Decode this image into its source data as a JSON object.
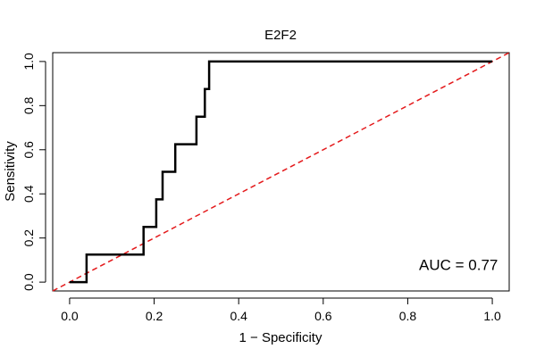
{
  "chart_data": {
    "type": "line",
    "title": "E2F2",
    "xlabel": "1 − Specificity",
    "ylabel": "Sensitivity",
    "xlim": [
      -0.04,
      1.04
    ],
    "ylim": [
      -0.04,
      1.04
    ],
    "x_ticks": [
      0.0,
      0.2,
      0.4,
      0.6,
      0.8,
      1.0
    ],
    "x_tick_labels": [
      "0.0",
      "0.2",
      "0.4",
      "0.6",
      "0.8",
      "1.0"
    ],
    "y_ticks": [
      0.0,
      0.2,
      0.4,
      0.6,
      0.8,
      1.0
    ],
    "y_tick_labels": [
      "0.0",
      "0.2",
      "0.4",
      "0.6",
      "0.8",
      "1.0"
    ],
    "grid": false,
    "series": [
      {
        "color": "#000000",
        "style": "step",
        "points": [
          [
            0.0,
            0.0
          ],
          [
            0.04,
            0.0
          ],
          [
            0.04,
            0.125
          ],
          [
            0.175,
            0.125
          ],
          [
            0.175,
            0.25
          ],
          [
            0.205,
            0.25
          ],
          [
            0.205,
            0.375
          ],
          [
            0.22,
            0.375
          ],
          [
            0.22,
            0.5
          ],
          [
            0.25,
            0.5
          ],
          [
            0.25,
            0.625
          ],
          [
            0.3,
            0.625
          ],
          [
            0.3,
            0.75
          ],
          [
            0.32,
            0.75
          ],
          [
            0.32,
            0.875
          ],
          [
            0.33,
            0.875
          ],
          [
            0.33,
            1.0
          ],
          [
            1.0,
            1.0
          ]
        ]
      },
      {
        "color": "#e41a1c",
        "style": "dashed",
        "points": [
          [
            -0.04,
            -0.04
          ],
          [
            1.04,
            1.04
          ]
        ]
      }
    ],
    "annotation": {
      "text": "AUC = 0.77",
      "x": 0.92,
      "y": 0.055
    }
  }
}
